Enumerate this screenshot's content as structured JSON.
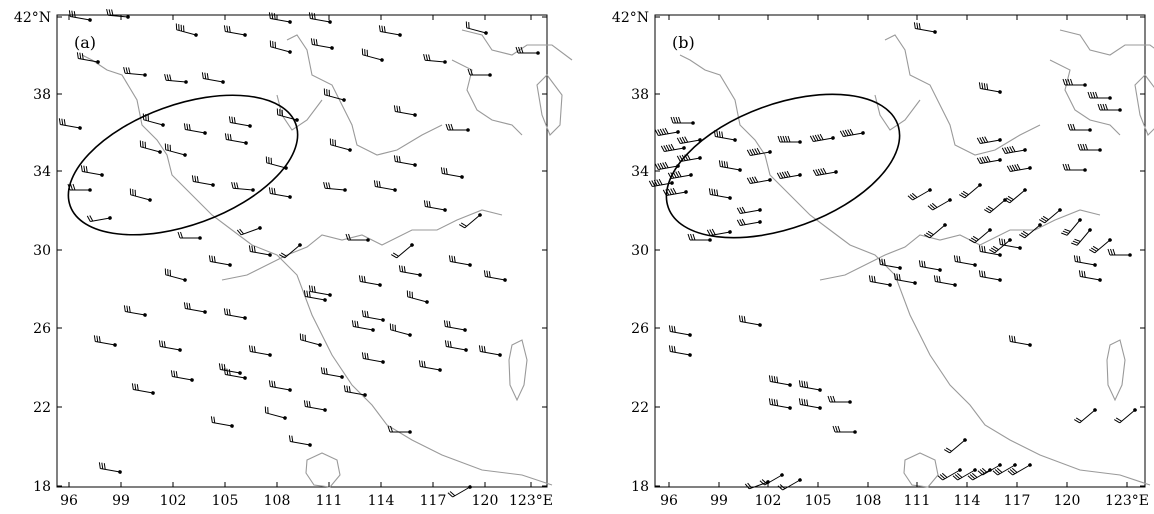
{
  "panels": [
    {
      "id": "a",
      "label": "(a)",
      "x_ticks": [
        "96",
        "99",
        "102",
        "105",
        "108",
        "111",
        "114",
        "117",
        "120",
        "123°E"
      ],
      "y_ticks": [
        "42°N",
        "38",
        "34",
        "30",
        "26",
        "22",
        "18"
      ],
      "lon_range": [
        95,
        124.5
      ],
      "lat_range": [
        18,
        42
      ],
      "highlight": "ellipse"
    },
    {
      "id": "b",
      "label": "(b)",
      "x_ticks": [
        "96",
        "99",
        "102",
        "105",
        "108",
        "111",
        "114",
        "117",
        "120",
        "123°E"
      ],
      "y_ticks": [
        "42°N",
        "38",
        "34",
        "30",
        "26",
        "22",
        "18"
      ],
      "lon_range": [
        95,
        124.5
      ],
      "lat_range": [
        18,
        42
      ],
      "highlight": "ellipse"
    }
  ],
  "colors": {
    "coastline": "#9a9a9a",
    "barb": "#000000",
    "frame": "#000000"
  },
  "icons": {
    "station": "station-dot",
    "wind": "wind-barb"
  }
}
